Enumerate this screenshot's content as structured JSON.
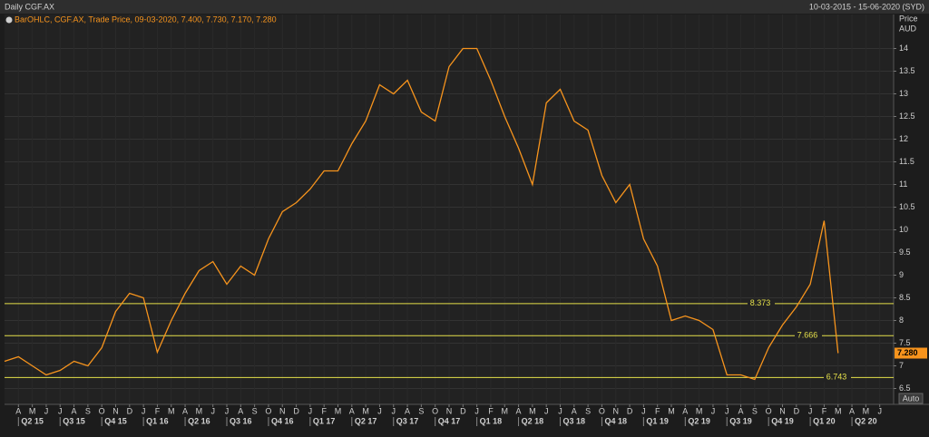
{
  "header": {
    "title": "Daily CGF.AX",
    "range_label": "10-03-2015 - 15-06-2020 (SYD)"
  },
  "chart_data": {
    "type": "line",
    "legend_text": "BarOHLC, CGF.AX, Trade Price, 09-03-2020, 7.400, 7.730, 7.170, 7.280",
    "y_axis_title": [
      "Price",
      "AUD"
    ],
    "x": [
      "2015-03",
      "2015-04",
      "2015-05",
      "2015-06",
      "2015-07",
      "2015-08",
      "2015-09",
      "2015-10",
      "2015-11",
      "2015-12",
      "2016-01",
      "2016-02",
      "2016-03",
      "2016-04",
      "2016-05",
      "2016-06",
      "2016-07",
      "2016-08",
      "2016-09",
      "2016-10",
      "2016-11",
      "2016-12",
      "2017-01",
      "2017-02",
      "2017-03",
      "2017-04",
      "2017-05",
      "2017-06",
      "2017-07",
      "2017-08",
      "2017-09",
      "2017-10",
      "2017-11",
      "2017-12",
      "2018-01",
      "2018-02",
      "2018-03",
      "2018-04",
      "2018-05",
      "2018-06",
      "2018-07",
      "2018-08",
      "2018-09",
      "2018-10",
      "2018-11",
      "2018-12",
      "2019-01",
      "2019-02",
      "2019-03",
      "2019-04",
      "2019-05",
      "2019-06",
      "2019-07",
      "2019-08",
      "2019-09",
      "2019-10",
      "2019-11",
      "2019-12",
      "2020-01",
      "2020-02",
      "2020-03"
    ],
    "series": [
      {
        "name": "CGF.AX",
        "color": "#f7941d",
        "values": [
          7.1,
          7.2,
          7.0,
          6.8,
          6.9,
          7.1,
          7.0,
          7.4,
          8.2,
          8.6,
          8.5,
          7.3,
          8.0,
          8.6,
          9.1,
          9.3,
          8.8,
          9.2,
          9.0,
          9.8,
          10.4,
          10.6,
          10.9,
          11.3,
          11.3,
          11.9,
          12.4,
          13.2,
          13.0,
          13.3,
          12.6,
          12.4,
          13.6,
          14.0,
          14.0,
          13.3,
          12.5,
          11.8,
          11.0,
          12.8,
          13.1,
          12.4,
          12.2,
          11.2,
          10.6,
          11.0,
          9.8,
          9.2,
          8.0,
          8.1,
          8.0,
          7.8,
          6.8,
          6.8,
          6.7,
          7.4,
          7.9,
          8.3,
          8.8,
          10.2,
          7.28
        ]
      }
    ],
    "levels": [
      8.373,
      7.666,
      6.743
    ],
    "level_color": "#e5e04a",
    "last_price": {
      "value": 7.28,
      "label": "7.280"
    },
    "xlim": [
      "2015-03",
      "2020-07"
    ],
    "ylim": [
      6.15,
      14.75
    ],
    "yticks": [
      6.5,
      7,
      7.5,
      8,
      8.5,
      9,
      9.5,
      10,
      10.5,
      11,
      11.5,
      12,
      12.5,
      13,
      13.5,
      14
    ],
    "xticks": [
      {
        "value": "2015-04",
        "label": "A"
      },
      {
        "value": "2015-05",
        "label": "M"
      },
      {
        "value": "2015-06",
        "label": "J"
      },
      {
        "value": "2015-07",
        "label": "J"
      },
      {
        "value": "2015-08",
        "label": "A"
      },
      {
        "value": "2015-09",
        "label": "S"
      },
      {
        "value": "2015-10",
        "label": "O"
      },
      {
        "value": "2015-11",
        "label": "N"
      },
      {
        "value": "2015-12",
        "label": "D"
      },
      {
        "value": "2016-01",
        "label": "J"
      },
      {
        "value": "2016-02",
        "label": "F"
      },
      {
        "value": "2016-03",
        "label": "M"
      },
      {
        "value": "2016-04",
        "label": "A"
      },
      {
        "value": "2016-05",
        "label": "M"
      },
      {
        "value": "2016-06",
        "label": "J"
      },
      {
        "value": "2016-07",
        "label": "J"
      },
      {
        "value": "2016-08",
        "label": "A"
      },
      {
        "value": "2016-09",
        "label": "S"
      },
      {
        "value": "2016-10",
        "label": "O"
      },
      {
        "value": "2016-11",
        "label": "N"
      },
      {
        "value": "2016-12",
        "label": "D"
      },
      {
        "value": "2017-01",
        "label": "J"
      },
      {
        "value": "2017-02",
        "label": "F"
      },
      {
        "value": "2017-03",
        "label": "M"
      },
      {
        "value": "2017-04",
        "label": "A"
      },
      {
        "value": "2017-05",
        "label": "M"
      },
      {
        "value": "2017-06",
        "label": "J"
      },
      {
        "value": "2017-07",
        "label": "J"
      },
      {
        "value": "2017-08",
        "label": "A"
      },
      {
        "value": "2017-09",
        "label": "S"
      },
      {
        "value": "2017-10",
        "label": "O"
      },
      {
        "value": "2017-11",
        "label": "N"
      },
      {
        "value": "2017-12",
        "label": "D"
      },
      {
        "value": "2018-01",
        "label": "J"
      },
      {
        "value": "2018-02",
        "label": "F"
      },
      {
        "value": "2018-03",
        "label": "M"
      },
      {
        "value": "2018-04",
        "label": "A"
      },
      {
        "value": "2018-05",
        "label": "M"
      },
      {
        "value": "2018-06",
        "label": "J"
      },
      {
        "value": "2018-07",
        "label": "J"
      },
      {
        "value": "2018-08",
        "label": "A"
      },
      {
        "value": "2018-09",
        "label": "S"
      },
      {
        "value": "2018-10",
        "label": "O"
      },
      {
        "value": "2018-11",
        "label": "N"
      },
      {
        "value": "2018-12",
        "label": "D"
      },
      {
        "value": "2019-01",
        "label": "J"
      },
      {
        "value": "2019-02",
        "label": "F"
      },
      {
        "value": "2019-03",
        "label": "M"
      },
      {
        "value": "2019-04",
        "label": "A"
      },
      {
        "value": "2019-05",
        "label": "M"
      },
      {
        "value": "2019-06",
        "label": "J"
      },
      {
        "value": "2019-07",
        "label": "J"
      },
      {
        "value": "2019-08",
        "label": "A"
      },
      {
        "value": "2019-09",
        "label": "S"
      },
      {
        "value": "2019-10",
        "label": "O"
      },
      {
        "value": "2019-11",
        "label": "N"
      },
      {
        "value": "2019-12",
        "label": "D"
      },
      {
        "value": "2020-01",
        "label": "J"
      },
      {
        "value": "2020-02",
        "label": "F"
      },
      {
        "value": "2020-03",
        "label": "M"
      },
      {
        "value": "2020-04",
        "label": "A"
      },
      {
        "value": "2020-05",
        "label": "M"
      },
      {
        "value": "2020-06",
        "label": "J"
      }
    ],
    "quarter_ticks": [
      {
        "value": "2015-05",
        "label": "Q2 15"
      },
      {
        "value": "2015-08",
        "label": "Q3 15"
      },
      {
        "value": "2015-11",
        "label": "Q4 15"
      },
      {
        "value": "2016-02",
        "label": "Q1 16"
      },
      {
        "value": "2016-05",
        "label": "Q2 16"
      },
      {
        "value": "2016-08",
        "label": "Q3 16"
      },
      {
        "value": "2016-11",
        "label": "Q4 16"
      },
      {
        "value": "2017-02",
        "label": "Q1 17"
      },
      {
        "value": "2017-05",
        "label": "Q2 17"
      },
      {
        "value": "2017-08",
        "label": "Q3 17"
      },
      {
        "value": "2017-11",
        "label": "Q4 17"
      },
      {
        "value": "2018-02",
        "label": "Q1 18"
      },
      {
        "value": "2018-05",
        "label": "Q2 18"
      },
      {
        "value": "2018-08",
        "label": "Q3 18"
      },
      {
        "value": "2018-11",
        "label": "Q4 18"
      },
      {
        "value": "2019-02",
        "label": "Q1 19"
      },
      {
        "value": "2019-05",
        "label": "Q2 19"
      },
      {
        "value": "2019-08",
        "label": "Q3 19"
      },
      {
        "value": "2019-11",
        "label": "Q4 19"
      },
      {
        "value": "2020-02",
        "label": "Q1 20"
      },
      {
        "value": "2020-05",
        "label": "Q2 20"
      }
    ],
    "grid": true,
    "button": "Auto"
  }
}
